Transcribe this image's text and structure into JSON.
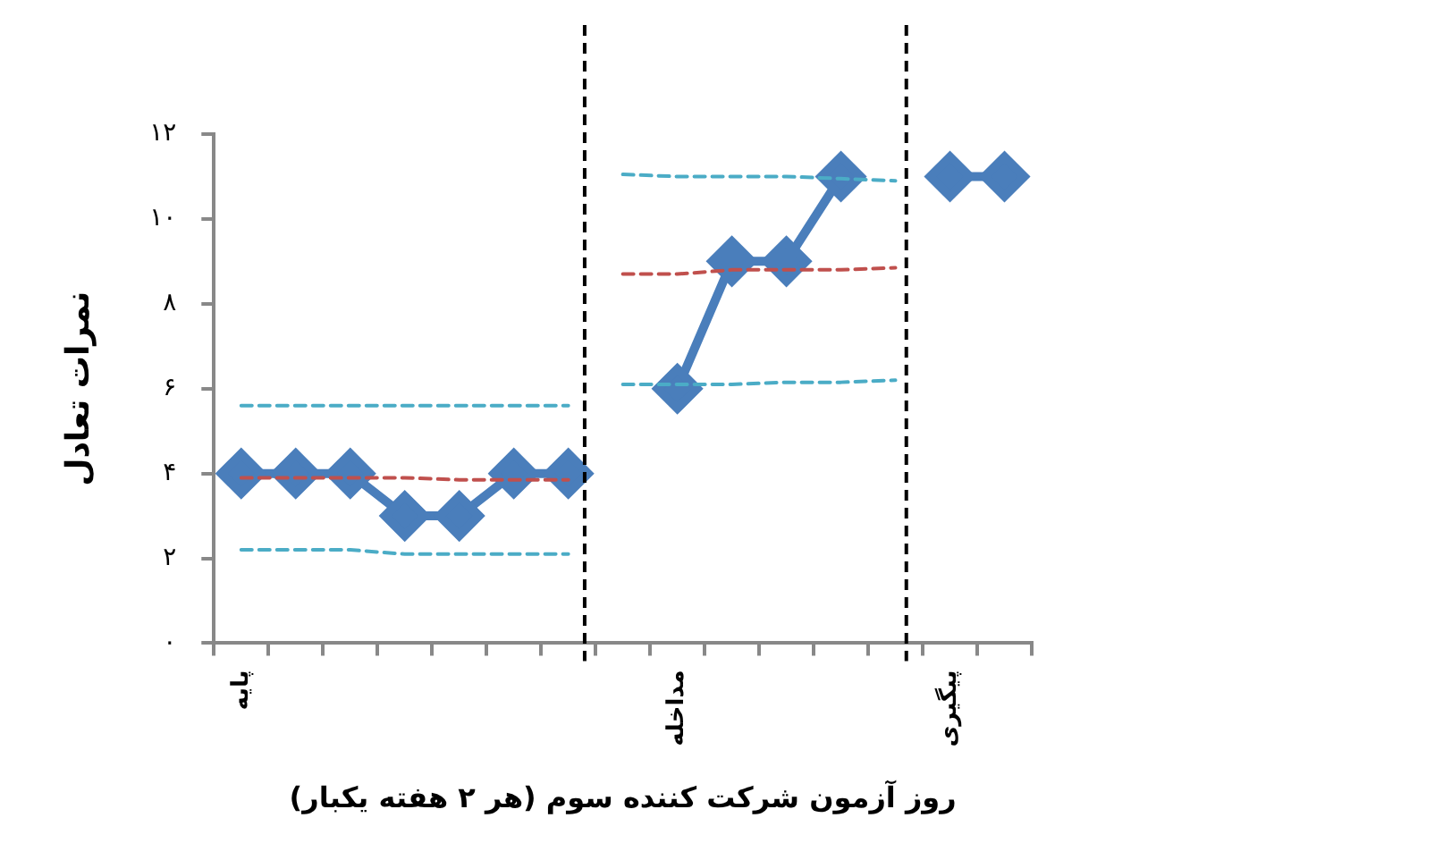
{
  "chart_data": {
    "type": "line",
    "xlabel": "روز آزمون شرکت کننده سوم (هر ۲ هفته یکبار)",
    "ylabel": "نمرات تعادل",
    "categories": [
      "پایه",
      null,
      null,
      null,
      null,
      null,
      null,
      null,
      "مداخله",
      null,
      null,
      null,
      null,
      "پیگیری",
      null
    ],
    "ylim": [
      0,
      12
    ],
    "yticks": [
      {
        "value": 0,
        "label": "۰"
      },
      {
        "value": 2,
        "label": "۲"
      },
      {
        "value": 4,
        "label": "۴"
      },
      {
        "value": 6,
        "label": "۶"
      },
      {
        "value": 8,
        "label": "۸"
      },
      {
        "value": 10,
        "label": "۱۰"
      },
      {
        "value": 12,
        "label": "۱۲"
      }
    ],
    "grid": false,
    "legend": false,
    "series": [
      {
        "color": "#4a7ebb",
        "marker": "diamond",
        "line_style": "solid",
        "values": [
          4,
          4,
          4,
          3,
          3,
          4,
          4,
          null,
          6,
          9,
          9,
          11,
          null,
          11,
          11
        ]
      },
      {
        "color": "#c0504d",
        "marker": "none",
        "line_style": "dashed",
        "values": [
          3.9,
          3.9,
          3.9,
          3.9,
          3.85,
          3.85,
          3.85,
          null,
          null,
          null,
          null,
          null,
          null,
          null,
          null
        ]
      },
      {
        "color": "#4bacc6",
        "marker": "none",
        "line_style": "dashed",
        "values": [
          5.6,
          5.6,
          5.6,
          5.6,
          5.6,
          5.6,
          5.6,
          null,
          null,
          null,
          null,
          null,
          null,
          null,
          null
        ]
      },
      {
        "color": "#4bacc6",
        "marker": "none",
        "line_style": "dashed",
        "values": [
          2.2,
          2.2,
          2.2,
          2.1,
          2.1,
          2.1,
          2.1,
          null,
          null,
          null,
          null,
          null,
          null,
          null,
          null
        ]
      },
      {
        "color": "#c0504d",
        "marker": "none",
        "line_style": "dashed",
        "values": [
          null,
          null,
          null,
          null,
          null,
          null,
          null,
          8.7,
          8.7,
          8.8,
          8.8,
          8.8,
          8.85,
          null,
          null
        ]
      },
      {
        "color": "#4bacc6",
        "marker": "none",
        "line_style": "dashed",
        "values": [
          null,
          null,
          null,
          null,
          null,
          null,
          null,
          11.05,
          11,
          11,
          11,
          10.95,
          10.9,
          null,
          null
        ]
      },
      {
        "color": "#4bacc6",
        "marker": "none",
        "line_style": "dashed",
        "values": [
          null,
          null,
          null,
          null,
          null,
          null,
          null,
          6.1,
          6.1,
          6.1,
          6.15,
          6.15,
          6.2,
          null,
          null
        ]
      }
    ]
  }
}
